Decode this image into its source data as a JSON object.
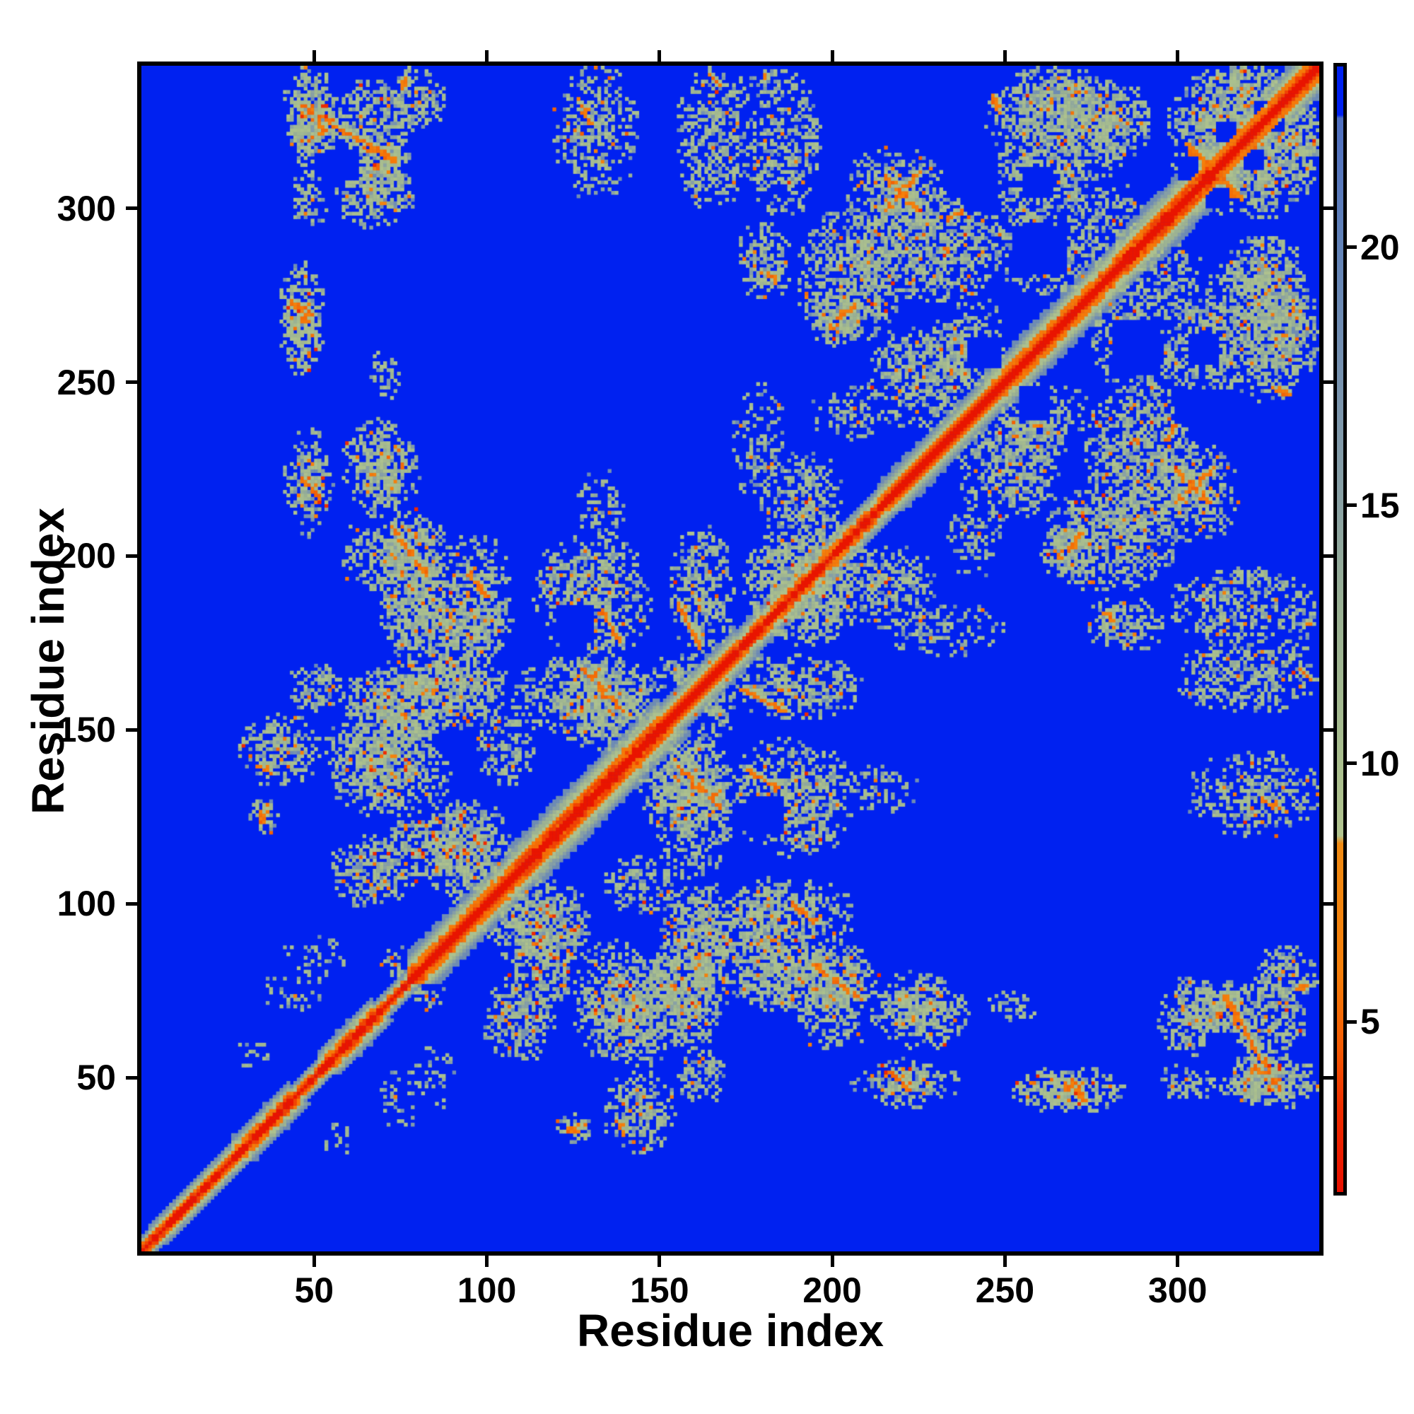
{
  "figure": {
    "xlabel": "Residue index",
    "ylabel": "Residue index"
  },
  "chart_data": {
    "type": "heatmap",
    "subtype": "protein-residue-distance-map",
    "title": "",
    "xlabel": "Residue index",
    "ylabel": "Residue index",
    "n_residues": 341,
    "x_range": [
      0,
      341
    ],
    "y_range": [
      0,
      341
    ],
    "x_ticks": [
      50,
      100,
      150,
      200,
      250,
      300
    ],
    "y_ticks": [
      50,
      100,
      150,
      200,
      250,
      300
    ],
    "grid": false,
    "background_color": "#0021f0",
    "colorbar": {
      "side": "right",
      "value_min": 1.7,
      "value_max": 23.5,
      "cap_value": 22.55,
      "ticks": [
        5,
        10,
        15,
        20
      ],
      "stops": [
        [
          23.5,
          "#0021f0"
        ],
        [
          22.56,
          "#0021f0"
        ],
        [
          22.5,
          "#4f6fc0"
        ],
        [
          20,
          "#6283b8"
        ],
        [
          17,
          "#7b95ad"
        ],
        [
          15,
          "#8aa2a4"
        ],
        [
          13,
          "#9ab193"
        ],
        [
          10,
          "#aabf8e"
        ],
        [
          8.6,
          "#b2c48f"
        ],
        [
          8.45,
          "#f08a12"
        ],
        [
          6,
          "#f57f0a"
        ],
        [
          4.5,
          "#f35b03"
        ],
        [
          3.3,
          "#ee2d00"
        ],
        [
          1.7,
          "#e81000"
        ]
      ]
    },
    "diagonal": {
      "core_halfwidth": 4,
      "bulges": [
        [
          3,
          27,
          5
        ],
        [
          27,
          43,
          6
        ],
        [
          52,
          67,
          6
        ],
        [
          67,
          78,
          4
        ],
        [
          78,
          107,
          8
        ],
        [
          107,
          150,
          9
        ],
        [
          150,
          172,
          7
        ],
        [
          172,
          215,
          6
        ],
        [
          215,
          245,
          7
        ],
        [
          245,
          283,
          8
        ],
        [
          283,
          311,
          9
        ],
        [
          311,
          341,
          8
        ]
      ]
    },
    "contact_patches": [
      [
        42,
        57,
        315,
        341,
        0.55,
        0.05
      ],
      [
        54,
        78,
        306,
        337,
        0.55,
        0.06
      ],
      [
        57,
        79,
        295,
        313,
        0.5,
        0.04
      ],
      [
        44,
        54,
        296,
        306,
        0.4,
        0.03
      ],
      [
        42,
        52,
        253,
        284,
        0.5,
        0.09
      ],
      [
        44,
        54,
        206,
        237,
        0.5,
        0.09
      ],
      [
        69,
        75,
        245,
        257,
        0.25,
        0
      ],
      [
        63,
        76,
        212,
        240,
        0.35,
        0.02
      ],
      [
        69,
        88,
        172,
        214,
        0.55,
        0.06
      ],
      [
        86,
        108,
        172,
        206,
        0.5,
        0.06
      ],
      [
        114,
        148,
        172,
        206,
        0.55,
        0.06
      ],
      [
        154,
        172,
        172,
        209,
        0.55,
        0.06
      ],
      [
        127,
        140,
        206,
        225,
        0.3,
        0.02
      ],
      [
        120,
        144,
        304,
        341,
        0.5,
        0.06
      ],
      [
        156,
        176,
        301,
        341,
        0.5,
        0.05
      ],
      [
        176,
        197,
        299,
        340,
        0.45,
        0.05
      ],
      [
        43,
        59,
        156,
        169,
        0.5,
        0.03
      ],
      [
        59,
        86,
        144,
        167,
        0.55,
        0.06
      ],
      [
        76,
        106,
        157,
        171,
        0.55,
        0.05
      ],
      [
        118,
        150,
        145,
        171,
        0.6,
        0.07
      ],
      [
        161,
        172,
        147,
        171,
        0.5,
        0.05
      ],
      [
        29,
        52,
        135,
        155,
        0.5,
        0.05
      ],
      [
        53,
        87,
        134,
        154,
        0.5,
        0.05
      ],
      [
        32,
        40,
        121,
        130,
        0.45,
        0.12
      ],
      [
        55,
        80,
        100,
        120,
        0.6,
        0.08
      ],
      [
        83,
        107,
        100,
        130,
        0.55,
        0.07
      ],
      [
        97,
        115,
        135,
        157,
        0.45,
        0.04
      ],
      [
        37,
        52,
        68,
        83,
        0.22,
        0.02
      ],
      [
        42,
        61,
        80,
        91,
        0.22,
        0.02
      ],
      [
        29,
        37,
        52,
        63,
        0.35,
        0.03
      ],
      [
        70,
        78,
        79,
        88,
        0.5,
        0.05
      ],
      [
        108,
        128,
        72,
        105,
        0.55,
        0.08
      ],
      [
        126,
        148,
        56,
        90,
        0.55,
        0.08
      ],
      [
        150,
        170,
        60,
        105,
        0.55,
        0.08
      ],
      [
        168,
        190,
        72,
        105,
        0.55,
        0.08
      ],
      [
        190,
        212,
        58,
        90,
        0.5,
        0.07
      ],
      [
        150,
        171,
        108,
        148,
        0.45,
        0.05
      ],
      [
        214,
        239,
        59,
        81,
        0.5,
        0.08
      ],
      [
        212,
        231,
        42,
        56,
        0.45,
        0.08
      ],
      [
        253,
        285,
        41,
        53,
        0.5,
        0.05
      ],
      [
        246,
        260,
        66,
        75,
        0.2,
        0
      ],
      [
        299,
        321,
        63,
        78,
        0.55,
        0.07
      ],
      [
        323,
        341,
        70,
        88,
        0.5,
        0.07
      ],
      [
        315,
        337,
        43,
        56,
        0.5,
        0.08
      ],
      [
        299,
        315,
        44,
        52,
        0.35,
        0.04
      ],
      [
        205,
        232,
        293,
        318,
        0.55,
        0.05
      ],
      [
        207,
        250,
        274,
        305,
        0.6,
        0.05
      ],
      [
        191,
        220,
        262,
        300,
        0.55,
        0.06
      ],
      [
        173,
        188,
        274,
        296,
        0.5,
        0.06
      ],
      [
        177,
        209,
        175,
        213,
        0.5,
        0.06
      ],
      [
        208,
        230,
        180,
        203,
        0.45,
        0.04
      ],
      [
        214,
        250,
        172,
        187,
        0.3,
        0.03
      ],
      [
        194,
        210,
        261,
        276,
        0.5,
        0.07
      ],
      [
        211,
        239,
        237,
        266,
        0.5,
        0.06
      ],
      [
        227,
        247,
        249,
        269,
        0.6,
        0.06
      ],
      [
        255,
        292,
        315,
        339,
        0.5,
        0.06
      ],
      [
        248,
        274,
        294,
        317,
        0.55,
        0.06
      ],
      [
        248,
        284,
        276,
        296,
        0.45,
        0.05
      ],
      [
        270,
        290,
        288,
        308,
        0.4,
        0.04
      ],
      [
        298,
        341,
        302,
        341,
        0.55,
        0.07
      ],
      [
        303,
        341,
        245,
        286,
        0.4,
        0.05
      ],
      [
        322,
        341,
        252,
        275,
        0.5,
        0.06
      ],
      [
        315,
        335,
        272,
        293,
        0.45,
        0.05
      ],
      [
        195,
        219,
        234,
        249,
        0.3,
        0.03
      ],
      [
        247,
        275,
        234,
        250,
        0.3,
        0.03
      ],
      [
        173,
        186,
        330,
        340,
        0.3,
        0.04
      ]
    ],
    "orange_streaks": [
      [
        47,
        330,
        74,
        314
      ],
      [
        128,
        168,
        140,
        156
      ],
      [
        156,
        187,
        162,
        174
      ],
      [
        73,
        209,
        83,
        195
      ],
      [
        216,
        300,
        225,
        310
      ],
      [
        216,
        310,
        225,
        300
      ],
      [
        303,
        319,
        319,
        303
      ],
      [
        270,
        50,
        274,
        44
      ],
      [
        314,
        74,
        319,
        66
      ],
      [
        233,
        297,
        245,
        304
      ],
      [
        200,
        266,
        207,
        273
      ],
      [
        47,
        223,
        52,
        217
      ],
      [
        44,
        273,
        49,
        268
      ],
      [
        128,
        330,
        131,
        324
      ],
      [
        335,
        76,
        339,
        77
      ],
      [
        322,
        54,
        329,
        49
      ],
      [
        306,
        264,
        306,
        264
      ],
      [
        180,
        282,
        184,
        280
      ],
      [
        259,
        240,
        259,
        240
      ],
      [
        334,
        272,
        334,
        272
      ],
      [
        328,
        249,
        333,
        247
      ],
      [
        34,
        141,
        38,
        139
      ],
      [
        35,
        127,
        36,
        124
      ],
      [
        181,
        338,
        181,
        338
      ],
      [
        78,
        169,
        78,
        169
      ],
      [
        165,
        339,
        168,
        336
      ],
      [
        95,
        196,
        101,
        189
      ],
      [
        134,
        185,
        139,
        176
      ]
    ],
    "holes": [
      [
        256,
        304,
        264,
        312
      ],
      [
        239,
        300,
        248,
        310
      ],
      [
        312,
        320,
        317,
        325
      ],
      [
        301,
        309,
        306,
        315
      ],
      [
        324,
        323,
        331,
        330
      ],
      [
        240,
        255,
        249,
        263
      ],
      [
        310,
        55,
        317,
        63
      ],
      [
        121,
        176,
        131,
        186
      ],
      [
        282,
        253,
        295,
        268
      ]
    ]
  }
}
